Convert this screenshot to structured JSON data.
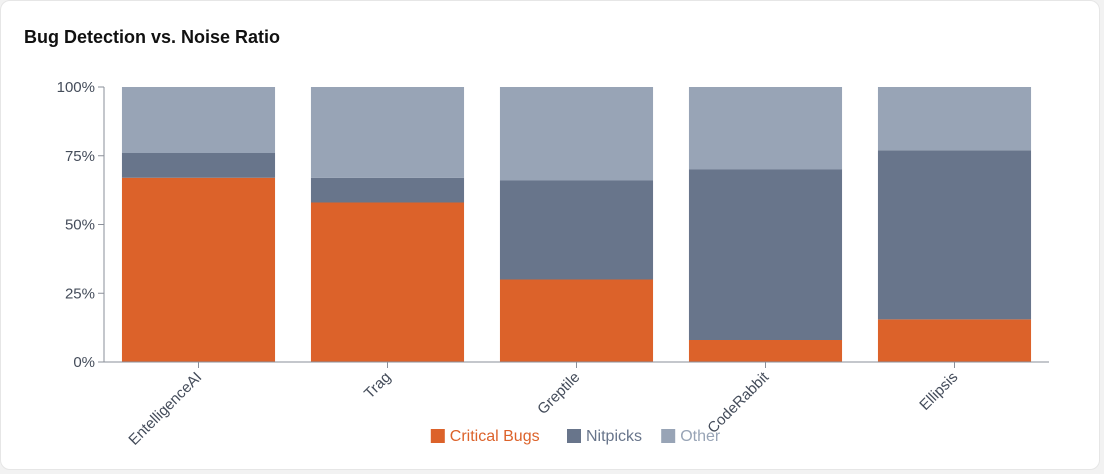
{
  "title": "Bug Detection vs. Noise Ratio",
  "chart_data": {
    "type": "bar",
    "stacked": true,
    "categories": [
      "EntelligenceAI",
      "Trag",
      "Greptile",
      "CodeRabbit",
      "Ellipsis"
    ],
    "series": [
      {
        "name": "Critical Bugs",
        "color": "#dc622a",
        "values": [
          67,
          58,
          30,
          8,
          15.5
        ]
      },
      {
        "name": "Nitpicks",
        "color": "#68758b",
        "values": [
          9,
          9,
          36,
          62,
          61.5
        ]
      },
      {
        "name": "Other",
        "color": "#98a4b6",
        "values": [
          24,
          33,
          34,
          30,
          23
        ]
      }
    ],
    "ylim": [
      0,
      100
    ],
    "yticks": [
      "0%",
      "25%",
      "50%",
      "75%",
      "100%"
    ],
    "ytick_values": [
      0,
      25,
      50,
      75,
      100
    ],
    "legend_position": "bottom-center",
    "grid": false
  }
}
